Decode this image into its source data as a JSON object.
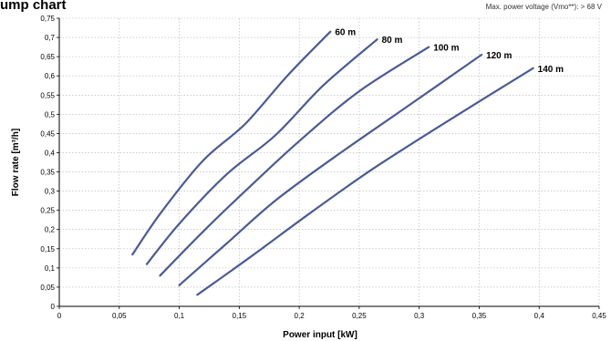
{
  "chart_data": {
    "type": "line",
    "title": "ump chart",
    "subtitle": "Max. power voltage (Vmo**): > 68 V",
    "xlabel": "Power input [kW]",
    "ylabel": "Flow rate [m³/h]",
    "xlim": [
      0,
      0.45
    ],
    "ylim": [
      0,
      0.75
    ],
    "x_ticks": [
      "0",
      "0,05",
      "0,1",
      "0,15",
      "0,2",
      "0,25",
      "0,3",
      "0,35",
      "0,4",
      "0,45"
    ],
    "y_ticks": [
      "0",
      "0,05",
      "0,1",
      "0,15",
      "0,2",
      "0,25",
      "0,3",
      "0,35",
      "0,4",
      "0,45",
      "0,5",
      "0,55",
      "0,6",
      "0,65",
      "0,7",
      "0,75"
    ],
    "x_tick_values": [
      0,
      0.05,
      0.1,
      0.15,
      0.2,
      0.25,
      0.3,
      0.35,
      0.4,
      0.45
    ],
    "y_tick_values": [
      0,
      0.05,
      0.1,
      0.15,
      0.2,
      0.25,
      0.3,
      0.35,
      0.4,
      0.45,
      0.5,
      0.55,
      0.6,
      0.65,
      0.7,
      0.75
    ],
    "grid": true,
    "line_color": "#4a5a9a",
    "series": [
      {
        "name": "60 m",
        "points": [
          [
            0.061,
            0.135
          ],
          [
            0.085,
            0.245
          ],
          [
            0.12,
            0.38
          ],
          [
            0.155,
            0.475
          ],
          [
            0.19,
            0.6
          ],
          [
            0.226,
            0.715
          ]
        ]
      },
      {
        "name": "80 m",
        "points": [
          [
            0.073,
            0.11
          ],
          [
            0.1,
            0.215
          ],
          [
            0.14,
            0.345
          ],
          [
            0.18,
            0.445
          ],
          [
            0.22,
            0.575
          ],
          [
            0.265,
            0.695
          ]
        ]
      },
      {
        "name": "100 m",
        "points": [
          [
            0.084,
            0.08
          ],
          [
            0.12,
            0.195
          ],
          [
            0.16,
            0.315
          ],
          [
            0.2,
            0.43
          ],
          [
            0.25,
            0.56
          ],
          [
            0.308,
            0.675
          ]
        ]
      },
      {
        "name": "120 m",
        "points": [
          [
            0.1,
            0.055
          ],
          [
            0.14,
            0.165
          ],
          [
            0.18,
            0.275
          ],
          [
            0.23,
            0.39
          ],
          [
            0.29,
            0.52
          ],
          [
            0.352,
            0.655
          ]
        ]
      },
      {
        "name": "140 m",
        "points": [
          [
            0.115,
            0.03
          ],
          [
            0.16,
            0.13
          ],
          [
            0.21,
            0.245
          ],
          [
            0.26,
            0.355
          ],
          [
            0.32,
            0.475
          ],
          [
            0.395,
            0.62
          ]
        ]
      }
    ]
  }
}
